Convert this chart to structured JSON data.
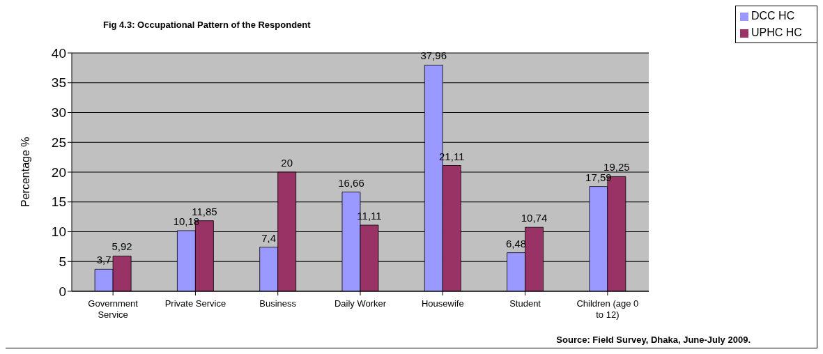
{
  "chart_data": {
    "type": "bar",
    "title": "Fig 4.3: Occupational Pattern of the Respondent",
    "ylabel": "Percentage  %",
    "categories": [
      "Government Service",
      "Private Service",
      "Business",
      "Daily Worker",
      "Housewife",
      "Student",
      "Children (age 0 to 12)"
    ],
    "series": [
      {
        "name": "DCC HC",
        "color": "#9999ff",
        "values": [
          3.7,
          10.18,
          7.4,
          16.66,
          37.96,
          6.48,
          17.59
        ],
        "value_labels": [
          "3,7",
          "10,18",
          "7,4",
          "16,66",
          "37,96",
          "6,48",
          "17,59"
        ]
      },
      {
        "name": "UPHC HC",
        "color": "#993366",
        "values": [
          5.92,
          11.85,
          20,
          11.11,
          21.11,
          10.74,
          19.25
        ],
        "value_labels": [
          "5,92",
          "11,85",
          "20",
          "11,11",
          "21,11",
          "10,74",
          "19,25"
        ]
      }
    ],
    "ylim": [
      0,
      40
    ],
    "yticks": [
      0,
      5,
      10,
      15,
      20,
      25,
      30,
      35,
      40
    ],
    "grid": "y",
    "legend": "top right",
    "annotations": [
      "Source: Field Survey, Dhaka, June-July 2009."
    ]
  }
}
